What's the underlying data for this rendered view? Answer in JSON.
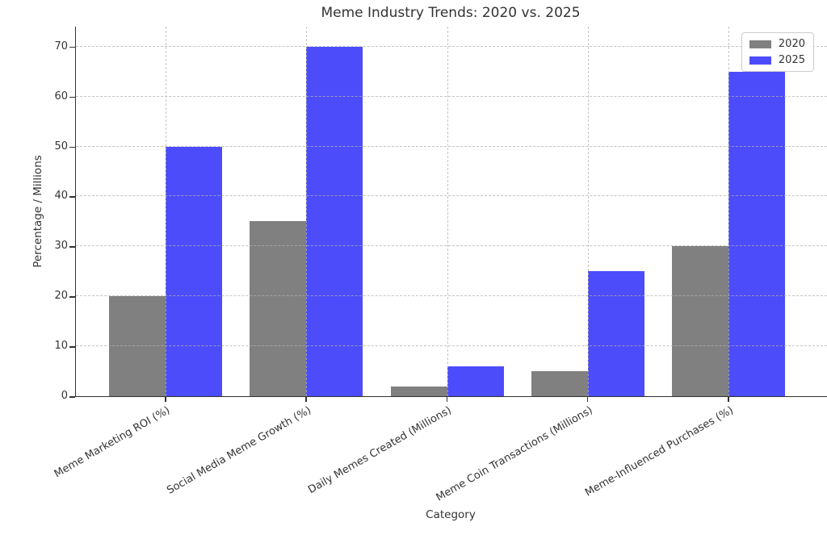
{
  "chart_data": {
    "type": "bar",
    "title": "Meme Industry Trends: 2020 vs. 2025",
    "xlabel": "Category",
    "ylabel": "Percentage / Millions",
    "categories": [
      "Meme Marketing ROI (%)",
      "Social Media Meme Growth (%)",
      "Daily Memes Created (Millions)",
      "Meme Coin Transactions (Millions)",
      "Meme-Influenced Purchases (%)"
    ],
    "series": [
      {
        "name": "2020",
        "color": "#808080",
        "values": [
          20,
          35,
          2,
          5,
          30
        ]
      },
      {
        "name": "2025",
        "color": "#4c4cfa",
        "values": [
          50,
          70,
          6,
          25,
          65
        ]
      }
    ],
    "yticks": [
      0,
      10,
      20,
      30,
      40,
      50,
      60,
      70
    ],
    "ylim": [
      0,
      74
    ],
    "grid": {
      "horizontal": true,
      "vertical": true,
      "style": "dashed",
      "color": "#b0b0b0"
    },
    "legend": {
      "position": "upper-right"
    },
    "colors": {
      "bar_2020": "#808080",
      "bar_2025": "#4c4cfa",
      "axis": "#333333",
      "background": "#ffffff"
    }
  }
}
